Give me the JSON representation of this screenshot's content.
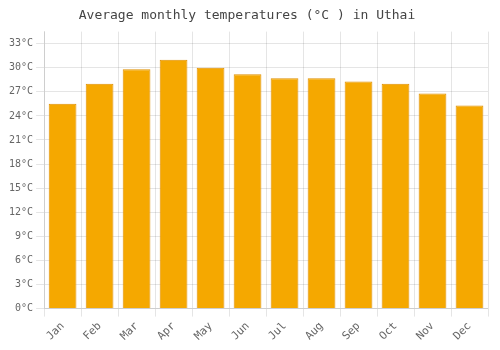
{
  "chart_data": {
    "type": "bar",
    "title": "Average monthly temperatures (°C ) in Uthai",
    "categories": [
      "Jan",
      "Feb",
      "Mar",
      "Apr",
      "May",
      "Jun",
      "Jul",
      "Aug",
      "Sep",
      "Oct",
      "Nov",
      "Dec"
    ],
    "values": [
      25.5,
      28.0,
      29.8,
      31.0,
      30.0,
      29.2,
      28.7,
      28.7,
      28.3,
      28.0,
      26.8,
      25.3
    ],
    "color": "#F5A800",
    "ylim": [
      0,
      34.5
    ],
    "yticks": [
      {
        "value": 0,
        "label": "0°C"
      },
      {
        "value": 3,
        "label": "3°C"
      },
      {
        "value": 6,
        "label": "6°C"
      },
      {
        "value": 9,
        "label": "9°C"
      },
      {
        "value": 12,
        "label": "12°C"
      },
      {
        "value": 15,
        "label": "15°C"
      },
      {
        "value": 18,
        "label": "18°C"
      },
      {
        "value": 21,
        "label": "21°C"
      },
      {
        "value": 24,
        "label": "24°C"
      },
      {
        "value": 27,
        "label": "27°C"
      },
      {
        "value": 30,
        "label": "30°C"
      },
      {
        "value": 33,
        "label": "33°C"
      }
    ],
    "grid": true
  }
}
